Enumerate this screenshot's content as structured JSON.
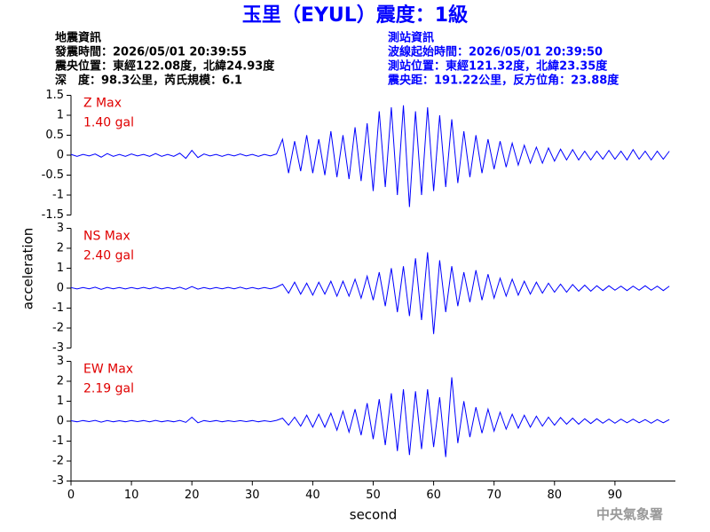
{
  "header": {
    "title": "玉里（EYUL）震度：1級",
    "left": [
      "地震資訊",
      "發震時間：2026/05/01 20:39:55",
      "震央位置：東經122.08度，北緯24.93度",
      "深　度：98.3公里，芮氏規模：6.1"
    ],
    "right": [
      "測站資訊",
      "波線起始時間：2026/05/01 20:39:50",
      "測站位置：東經121.32度，北緯23.35度",
      "震央距：191.22公里，反方位角：23.88度"
    ]
  },
  "footer": "中央氣象署",
  "chart_data": [
    {
      "type": "line",
      "annotations": [
        "Z Max",
        "1.40 gal"
      ],
      "x": [
        0,
        1,
        2,
        3,
        4,
        5,
        6,
        7,
        8,
        9,
        10,
        11,
        12,
        13,
        14,
        15,
        16,
        17,
        18,
        19,
        20,
        21,
        22,
        23,
        24,
        25,
        26,
        27,
        28,
        29,
        30,
        31,
        32,
        33,
        34,
        35,
        36,
        37,
        38,
        39,
        40,
        41,
        42,
        43,
        44,
        45,
        46,
        47,
        48,
        49,
        50,
        51,
        52,
        53,
        54,
        55,
        56,
        57,
        58,
        59,
        60,
        61,
        62,
        63,
        64,
        65,
        66,
        67,
        68,
        69,
        70,
        71,
        72,
        73,
        74,
        75,
        76,
        77,
        78,
        79,
        80,
        81,
        82,
        83,
        84,
        85,
        86,
        87,
        88,
        89,
        90,
        91,
        92,
        93,
        94,
        95,
        96,
        97,
        98,
        99
      ],
      "series": [
        {
          "color": "#0000ff",
          "values": [
            0.02,
            -0.03,
            0.02,
            -0.02,
            0.03,
            -0.05,
            0.04,
            -0.03,
            0.02,
            -0.03,
            0.03,
            -0.02,
            0.02,
            -0.03,
            0.04,
            -0.03,
            0.02,
            -0.03,
            0.05,
            -0.08,
            0.12,
            -0.06,
            0.03,
            -0.02,
            0.02,
            -0.03,
            0.02,
            -0.02,
            0.03,
            -0.02,
            0.02,
            -0.03,
            0.02,
            -0.02,
            0.03,
            0.4,
            -0.45,
            0.35,
            -0.4,
            0.5,
            -0.45,
            0.4,
            -0.5,
            0.6,
            -0.55,
            0.5,
            -0.6,
            0.7,
            -0.65,
            0.8,
            -0.9,
            1.1,
            -0.8,
            1.2,
            -1.0,
            1.25,
            -1.3,
            1.1,
            -1.0,
            1.2,
            -0.9,
            1.0,
            -0.8,
            0.9,
            -0.7,
            0.6,
            -0.55,
            0.5,
            -0.45,
            0.4,
            -0.35,
            0.35,
            -0.3,
            0.3,
            -0.25,
            0.25,
            -0.2,
            0.2,
            -0.2,
            0.18,
            -0.15,
            0.15,
            -0.12,
            0.14,
            -0.12,
            0.1,
            -0.12,
            0.1,
            -0.1,
            0.12,
            -0.1,
            0.1,
            -0.12,
            0.14,
            -0.1,
            0.1,
            -0.12,
            0.1,
            -0.1,
            0.1
          ]
        }
      ],
      "xlim": [
        0,
        100
      ],
      "ylim": [
        -1.5,
        1.5
      ],
      "yticks": [
        -1.5,
        -1,
        -0.5,
        0,
        0.5,
        1,
        1.5
      ]
    },
    {
      "type": "line",
      "annotations": [
        "NS Max",
        "2.40 gal"
      ],
      "ylabel": "acceleration",
      "x": [
        0,
        1,
        2,
        3,
        4,
        5,
        6,
        7,
        8,
        9,
        10,
        11,
        12,
        13,
        14,
        15,
        16,
        17,
        18,
        19,
        20,
        21,
        22,
        23,
        24,
        25,
        26,
        27,
        28,
        29,
        30,
        31,
        32,
        33,
        34,
        35,
        36,
        37,
        38,
        39,
        40,
        41,
        42,
        43,
        44,
        45,
        46,
        47,
        48,
        49,
        50,
        51,
        52,
        53,
        54,
        55,
        56,
        57,
        58,
        59,
        60,
        61,
        62,
        63,
        64,
        65,
        66,
        67,
        68,
        69,
        70,
        71,
        72,
        73,
        74,
        75,
        76,
        77,
        78,
        79,
        80,
        81,
        82,
        83,
        84,
        85,
        86,
        87,
        88,
        89,
        90,
        91,
        92,
        93,
        94,
        95,
        96,
        97,
        98,
        99
      ],
      "series": [
        {
          "color": "#0000ff",
          "values": [
            0.03,
            -0.04,
            0.03,
            -0.03,
            0.05,
            -0.06,
            0.04,
            -0.03,
            0.03,
            -0.04,
            0.03,
            -0.03,
            0.04,
            -0.03,
            0.05,
            -0.04,
            0.03,
            -0.04,
            0.05,
            -0.06,
            0.08,
            -0.05,
            0.03,
            -0.04,
            0.03,
            -0.03,
            0.04,
            -0.03,
            0.05,
            -0.04,
            0.03,
            -0.04,
            0.03,
            -0.03,
            0.05,
            0.2,
            -0.25,
            0.3,
            -0.3,
            0.25,
            -0.35,
            0.3,
            -0.3,
            0.35,
            -0.4,
            0.35,
            -0.4,
            0.45,
            -0.5,
            0.6,
            -0.6,
            0.8,
            -0.9,
            1.0,
            -1.2,
            1.1,
            -1.4,
            1.5,
            -1.6,
            1.8,
            -2.3,
            1.4,
            -1.2,
            1.1,
            -0.9,
            0.8,
            -0.7,
            0.9,
            -0.6,
            0.7,
            -0.5,
            0.5,
            -0.4,
            0.45,
            -0.35,
            0.35,
            -0.3,
            0.3,
            -0.25,
            0.25,
            -0.2,
            0.2,
            -0.2,
            0.18,
            -0.15,
            0.15,
            -0.15,
            0.12,
            -0.12,
            0.12,
            -0.1,
            0.1,
            -0.12,
            0.1,
            -0.1,
            0.12,
            -0.1,
            0.1,
            -0.12,
            0.1
          ]
        }
      ],
      "xlim": [
        0,
        100
      ],
      "ylim": [
        -3,
        3
      ],
      "yticks": [
        -3,
        -2,
        -1,
        0,
        1,
        2,
        3
      ]
    },
    {
      "type": "line",
      "annotations": [
        "EW Max",
        "2.19 gal"
      ],
      "xlabel": "second",
      "x": [
        0,
        1,
        2,
        3,
        4,
        5,
        6,
        7,
        8,
        9,
        10,
        11,
        12,
        13,
        14,
        15,
        16,
        17,
        18,
        19,
        20,
        21,
        22,
        23,
        24,
        25,
        26,
        27,
        28,
        29,
        30,
        31,
        32,
        33,
        34,
        35,
        36,
        37,
        38,
        39,
        40,
        41,
        42,
        43,
        44,
        45,
        46,
        47,
        48,
        49,
        50,
        51,
        52,
        53,
        54,
        55,
        56,
        57,
        58,
        59,
        60,
        61,
        62,
        63,
        64,
        65,
        66,
        67,
        68,
        69,
        70,
        71,
        72,
        73,
        74,
        75,
        76,
        77,
        78,
        79,
        80,
        81,
        82,
        83,
        84,
        85,
        86,
        87,
        88,
        89,
        90,
        91,
        92,
        93,
        94,
        95,
        96,
        97,
        98,
        99
      ],
      "series": [
        {
          "color": "#0000ff",
          "values": [
            0.02,
            -0.03,
            0.03,
            -0.02,
            0.04,
            -0.05,
            0.03,
            -0.03,
            0.02,
            -0.03,
            0.03,
            -0.02,
            0.03,
            -0.03,
            0.04,
            -0.03,
            0.02,
            -0.03,
            0.04,
            -0.06,
            0.2,
            -0.08,
            0.03,
            -0.02,
            0.03,
            -0.03,
            0.02,
            -0.02,
            0.03,
            -0.02,
            0.03,
            -0.03,
            0.02,
            -0.02,
            0.04,
            0.15,
            -0.2,
            0.2,
            -0.25,
            0.3,
            -0.3,
            0.35,
            -0.3,
            0.4,
            -0.45,
            0.5,
            -0.55,
            0.6,
            -0.7,
            0.9,
            -0.9,
            1.1,
            -1.2,
            1.4,
            -1.5,
            1.6,
            -1.7,
            1.5,
            -1.4,
            1.6,
            -1.3,
            1.2,
            -1.8,
            2.2,
            -1.1,
            1.0,
            -0.8,
            0.7,
            -0.6,
            0.6,
            -0.5,
            0.45,
            -0.4,
            0.35,
            -0.35,
            0.3,
            -0.3,
            0.25,
            -0.25,
            0.2,
            -0.2,
            0.18,
            -0.15,
            0.15,
            -0.15,
            0.12,
            -0.12,
            0.12,
            -0.1,
            0.1,
            -0.1,
            0.1,
            -0.08,
            0.1,
            -0.08,
            0.08,
            -0.1,
            0.08,
            -0.08,
            0.08
          ]
        }
      ],
      "xlim": [
        0,
        100
      ],
      "ylim": [
        -3,
        3
      ],
      "yticks": [
        -3,
        -2,
        -1,
        0,
        1,
        2,
        3
      ],
      "xticks": [
        0,
        10,
        20,
        30,
        40,
        50,
        60,
        70,
        80,
        90
      ]
    }
  ]
}
